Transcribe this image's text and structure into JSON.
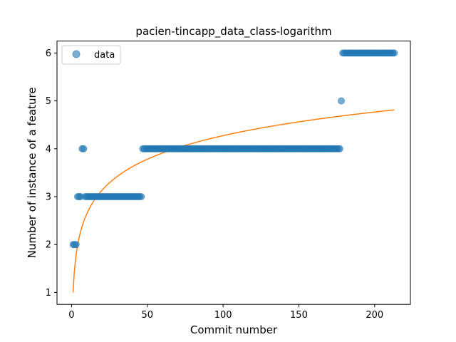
{
  "chart_data": {
    "type": "scatter",
    "title": "pacien-tincapp_data_class-logarithm",
    "xlabel": "Commit number",
    "ylabel": "Number of instance of a feature",
    "xlim": [
      -9.6,
      223.6
    ],
    "ylim": [
      0.75,
      6.25
    ],
    "xticks": [
      0,
      50,
      100,
      150,
      200
    ],
    "yticks": [
      1,
      2,
      3,
      4,
      5,
      6
    ],
    "xtick_labels": [
      "0",
      "50",
      "100",
      "150",
      "200"
    ],
    "ytick_labels": [
      "1",
      "2",
      "3",
      "4",
      "5",
      "6"
    ],
    "grid": false,
    "legend": {
      "position": "top-left",
      "entries": [
        "data"
      ]
    },
    "colors": {
      "data": "#1f77b4",
      "fit": "#ff7f0e"
    },
    "series": [
      {
        "name": "data",
        "kind": "scatter",
        "segments": [
          {
            "x_start": 1,
            "x_end": 3,
            "y": 2
          },
          {
            "x_start": 4,
            "x_end": 6,
            "y": 3
          },
          {
            "x_start": 7,
            "x_end": 8,
            "y": 4
          },
          {
            "x_start": 9,
            "x_end": 46,
            "y": 3
          },
          {
            "x_start": 47,
            "x_end": 177,
            "y": 4
          },
          {
            "x_start": 178,
            "x_end": 178,
            "y": 5
          },
          {
            "x_start": 179,
            "x_end": 213,
            "y": 6
          }
        ]
      },
      {
        "kind": "line",
        "fit": {
          "type": "logarithmic",
          "a": 1.0,
          "b": 0.711,
          "x_start": 1,
          "x_end": 213
        }
      }
    ]
  }
}
